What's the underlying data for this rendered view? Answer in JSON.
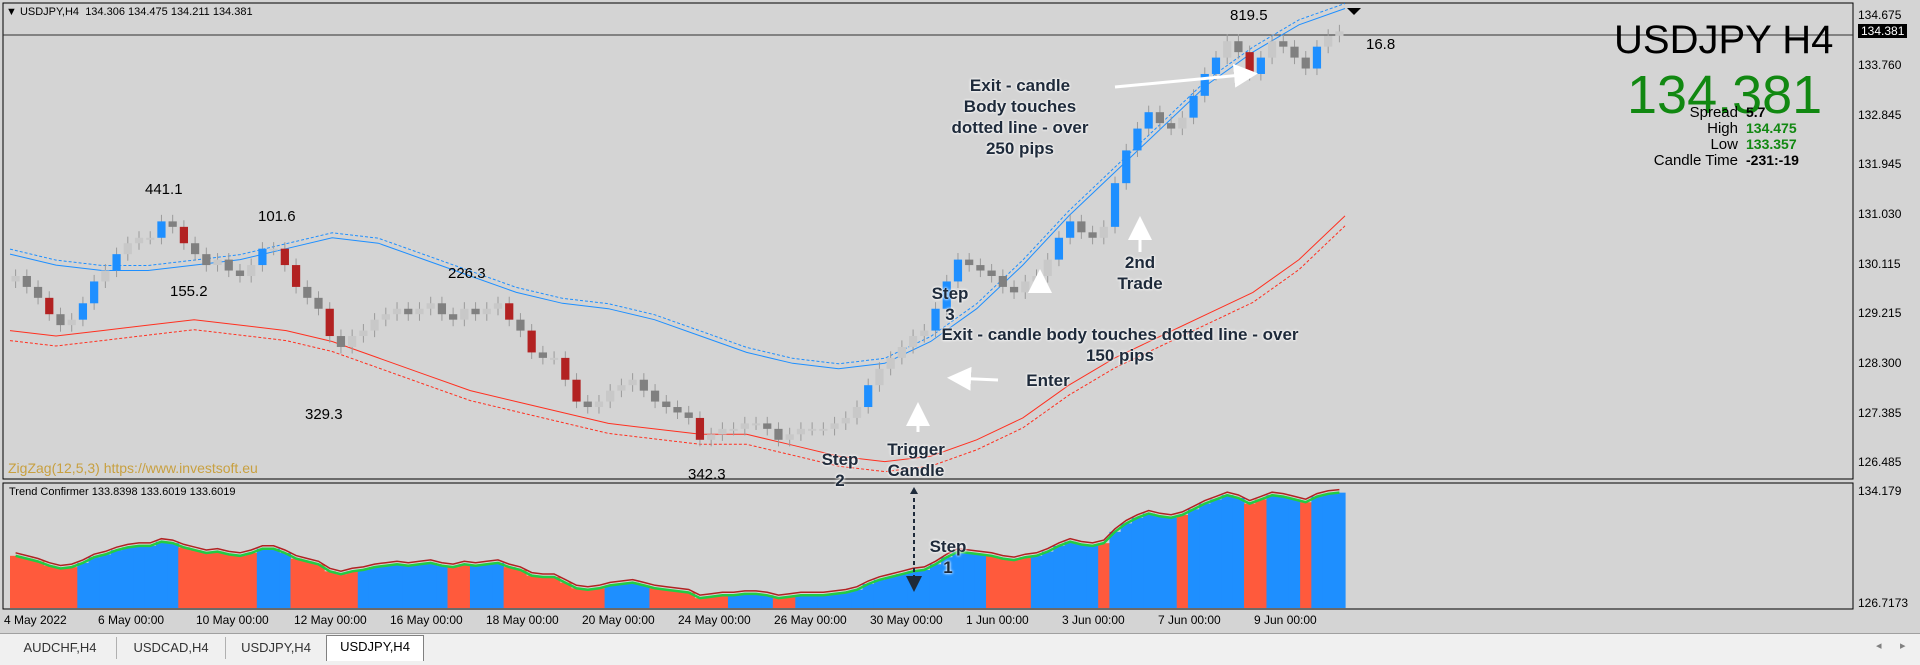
{
  "colors": {
    "bull": "#1e8fff",
    "bear": "#b22222",
    "bull_small": "#c8c8c8",
    "bear_small": "#808080",
    "upper_band": "#1e8fff",
    "lower_band": "#ff3020",
    "hist_red": "#ff5a3c",
    "hist_blue": "#1e8fff",
    "signal_line": "#22cc44",
    "green_text": "#118811",
    "zigzag_credit": "#c8a040"
  },
  "main_header": {
    "symbol": "USDJPY,H4",
    "ohlc": "134.306 134.475 134.211 134.381"
  },
  "indicator_header": "Trend Confirmer 133.8398 133.6019 133.6019",
  "zigzag_credit": "ZigZag(12,5,3) https://www.investsoft.eu",
  "big_symbol": "USDJPY H4",
  "big_price": "134.381",
  "info": {
    "spread_label": "Spread",
    "spread_value": "5.7",
    "high_label": "High",
    "high_value": "134.475",
    "low_label": "Low",
    "low_value": "133.357",
    "candle_time_label": "Candle Time",
    "candle_time_value": "-231:-19"
  },
  "price_axis": [
    "134.675",
    "134.381",
    "133.760",
    "132.845",
    "131.945",
    "131.030",
    "130.115",
    "129.215",
    "128.300",
    "127.385",
    "126.485"
  ],
  "indicator_axis": [
    "134.179",
    "126.7173"
  ],
  "time_axis": [
    "4 May 2022",
    "6 May 00:00",
    "10 May 00:00",
    "12 May 00:00",
    "16 May 00:00",
    "18 May 00:00",
    "20 May 00:00",
    "24 May 00:00",
    "26 May 00:00",
    "30 May 00:00",
    "1 Jun 00:00",
    "3 Jun 00:00",
    "7 Jun 00:00",
    "9 Jun 00:00"
  ],
  "zigzag_labels": [
    "441.1",
    "101.6",
    "155.2",
    "226.3",
    "329.3",
    "342.3",
    "819.5",
    "16.8"
  ],
  "annotations": {
    "exit_250": [
      "Exit - candle",
      "Body touches",
      "dotted line - over",
      "250 pips"
    ],
    "exit_150": [
      "Exit - candle body touches dotted line - over",
      "150 pips"
    ],
    "second_trade": [
      "2nd",
      "Trade"
    ],
    "step3": [
      "Step",
      "3"
    ],
    "enter": "Enter",
    "step2": [
      "Step",
      "2"
    ],
    "trigger": [
      "Trigger",
      "Candle"
    ],
    "step1": [
      "Step",
      "1"
    ]
  },
  "tabs": [
    "AUDCHF,H4",
    "USDCAD,H4",
    "USDJPY,H4",
    "USDJPY,H4"
  ],
  "active_tab": 3,
  "chart_data": {
    "type": "candlestick",
    "symbol": "USDJPY",
    "timeframe": "H4",
    "ylim": [
      126.2,
      134.9
    ],
    "closes": [
      129.9,
      129.7,
      129.5,
      129.2,
      129.0,
      129.1,
      129.4,
      129.8,
      130.0,
      130.3,
      130.5,
      130.6,
      130.6,
      130.9,
      130.8,
      130.5,
      130.3,
      130.1,
      130.2,
      130.0,
      129.9,
      130.1,
      130.4,
      130.4,
      130.1,
      129.7,
      129.5,
      129.3,
      128.8,
      128.6,
      128.8,
      128.9,
      129.1,
      129.2,
      129.3,
      129.2,
      129.3,
      129.4,
      129.2,
      129.1,
      129.3,
      129.2,
      129.3,
      129.4,
      129.1,
      128.9,
      128.5,
      128.4,
      128.4,
      128.0,
      127.6,
      127.5,
      127.6,
      127.8,
      127.9,
      128.0,
      127.8,
      127.6,
      127.5,
      127.4,
      127.3,
      126.9,
      127.0,
      127.1,
      127.1,
      127.2,
      127.2,
      127.1,
      126.9,
      127.0,
      127.1,
      127.1,
      127.1,
      127.2,
      127.3,
      127.5,
      127.9,
      128.2,
      128.4,
      128.6,
      128.8,
      128.9,
      129.3,
      129.8,
      130.2,
      130.1,
      130.0,
      129.9,
      129.7,
      129.6,
      129.8,
      129.9,
      130.2,
      130.6,
      130.9,
      130.7,
      130.6,
      130.8,
      131.6,
      132.2,
      132.6,
      132.9,
      132.7,
      132.6,
      132.8,
      133.2,
      133.6,
      133.9,
      134.2,
      134.0,
      133.6,
      133.9,
      134.2,
      134.1,
      133.9,
      133.7,
      134.1,
      134.3,
      134.38
    ],
    "upper_band": [
      130.3,
      130.1,
      130.0,
      130.0,
      130.1,
      130.2,
      130.4,
      130.6,
      130.5,
      130.2,
      129.9,
      129.6,
      129.4,
      129.3,
      129.1,
      128.8,
      128.5,
      128.3,
      128.2,
      128.3,
      128.7,
      129.3,
      130.1,
      131.0,
      131.8,
      132.6,
      133.4,
      134.0,
      134.5,
      134.8
    ],
    "lower_band": [
      128.9,
      128.8,
      128.9,
      129.0,
      129.1,
      129.0,
      128.9,
      128.7,
      128.4,
      128.1,
      127.8,
      127.6,
      127.4,
      127.2,
      127.1,
      127.0,
      127.0,
      126.8,
      126.6,
      126.5,
      126.6,
      126.9,
      127.3,
      127.9,
      128.4,
      128.8,
      129.2,
      129.6,
      130.2,
      131.0
    ],
    "zigzag_swings": [
      "441.1",
      "101.6",
      "155.2",
      "226.3",
      "329.3",
      "342.3",
      "819.5",
      "16.8"
    ],
    "indicator": {
      "name": "Trend Confirmer",
      "values": [
        133.8398,
        133.6019,
        133.6019
      ],
      "ylim": [
        126.7173,
        134.179
      ]
    }
  }
}
